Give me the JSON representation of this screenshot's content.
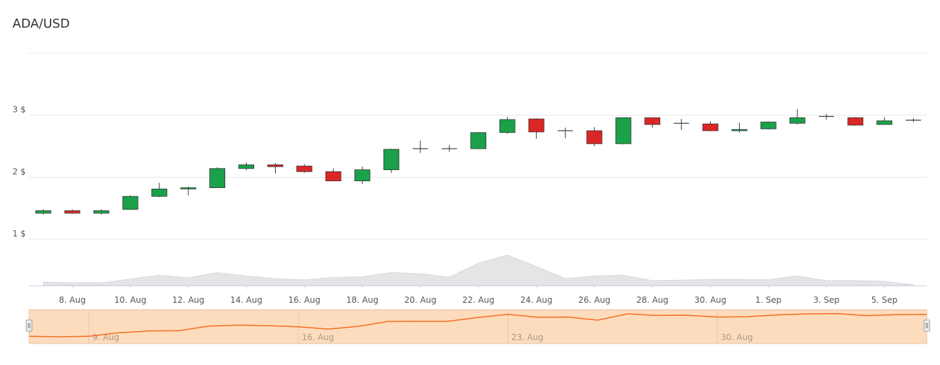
{
  "chart_data": {
    "type": "candlestick",
    "title": "ADA/USD",
    "y_ticks": [
      "1 $",
      "2 $",
      "3 $"
    ],
    "y_tick_values": [
      1,
      2,
      3
    ],
    "ylim": [
      1,
      4
    ],
    "x_tick_labels": [
      "8. Aug",
      "10. Aug",
      "12. Aug",
      "14. Aug",
      "16. Aug",
      "18. Aug",
      "20. Aug",
      "22. Aug",
      "24. Aug",
      "26. Aug",
      "28. Aug",
      "30. Aug",
      "1. Sep",
      "3. Sep",
      "5. Sep"
    ],
    "x_tick_dates": [
      "2021-08-08",
      "2021-08-10",
      "2021-08-12",
      "2021-08-14",
      "2021-08-16",
      "2021-08-18",
      "2021-08-20",
      "2021-08-22",
      "2021-08-24",
      "2021-08-26",
      "2021-08-28",
      "2021-08-30",
      "2021-09-01",
      "2021-09-03",
      "2021-09-05"
    ],
    "candles": [
      {
        "date": "2021-08-07",
        "open": 1.42,
        "high": 1.48,
        "low": 1.4,
        "close": 1.46
      },
      {
        "date": "2021-08-08",
        "open": 1.46,
        "high": 1.48,
        "low": 1.41,
        "close": 1.42
      },
      {
        "date": "2021-08-09",
        "open": 1.42,
        "high": 1.48,
        "low": 1.4,
        "close": 1.46
      },
      {
        "date": "2021-08-10",
        "open": 1.48,
        "high": 1.71,
        "low": 1.47,
        "close": 1.69
      },
      {
        "date": "2021-08-11",
        "open": 1.69,
        "high": 1.91,
        "low": 1.68,
        "close": 1.81
      },
      {
        "date": "2021-08-12",
        "open": 1.81,
        "high": 1.85,
        "low": 1.71,
        "close": 1.83
      },
      {
        "date": "2021-08-13",
        "open": 1.83,
        "high": 2.16,
        "low": 1.83,
        "close": 2.14
      },
      {
        "date": "2021-08-14",
        "open": 2.14,
        "high": 2.24,
        "low": 2.11,
        "close": 2.2
      },
      {
        "date": "2021-08-15",
        "open": 2.2,
        "high": 2.23,
        "low": 2.06,
        "close": 2.17
      },
      {
        "date": "2021-08-16",
        "open": 2.18,
        "high": 2.21,
        "low": 2.07,
        "close": 2.09
      },
      {
        "date": "2021-08-17",
        "open": 2.09,
        "high": 2.14,
        "low": 1.93,
        "close": 1.94
      },
      {
        "date": "2021-08-18",
        "open": 1.94,
        "high": 2.17,
        "low": 1.89,
        "close": 2.12
      },
      {
        "date": "2021-08-19",
        "open": 2.12,
        "high": 2.46,
        "low": 2.07,
        "close": 2.45
      },
      {
        "date": "2021-08-20",
        "open": 2.45,
        "high": 2.59,
        "low": 2.39,
        "close": 2.46
      },
      {
        "date": "2021-08-21",
        "open": 2.45,
        "high": 2.52,
        "low": 2.41,
        "close": 2.46
      },
      {
        "date": "2021-08-22",
        "open": 2.46,
        "high": 2.73,
        "low": 2.45,
        "close": 2.72
      },
      {
        "date": "2021-08-23",
        "open": 2.72,
        "high": 2.97,
        "low": 2.7,
        "close": 2.93
      },
      {
        "date": "2021-08-24",
        "open": 2.94,
        "high": 2.95,
        "low": 2.62,
        "close": 2.73
      },
      {
        "date": "2021-08-25",
        "open": 2.74,
        "high": 2.8,
        "low": 2.63,
        "close": 2.75
      },
      {
        "date": "2021-08-26",
        "open": 2.75,
        "high": 2.81,
        "low": 2.5,
        "close": 2.54
      },
      {
        "date": "2021-08-27",
        "open": 2.54,
        "high": 2.96,
        "low": 2.53,
        "close": 2.96
      },
      {
        "date": "2021-08-28",
        "open": 2.96,
        "high": 2.96,
        "low": 2.8,
        "close": 2.85
      },
      {
        "date": "2021-08-29",
        "open": 2.86,
        "high": 2.94,
        "low": 2.76,
        "close": 2.87
      },
      {
        "date": "2021-08-30",
        "open": 2.86,
        "high": 2.9,
        "low": 2.74,
        "close": 2.75
      },
      {
        "date": "2021-08-31",
        "open": 2.75,
        "high": 2.88,
        "low": 2.72,
        "close": 2.77
      },
      {
        "date": "2021-09-01",
        "open": 2.78,
        "high": 2.9,
        "low": 2.77,
        "close": 2.89
      },
      {
        "date": "2021-09-02",
        "open": 2.87,
        "high": 3.1,
        "low": 2.85,
        "close": 2.96
      },
      {
        "date": "2021-09-03",
        "open": 2.97,
        "high": 3.02,
        "low": 2.93,
        "close": 2.98
      },
      {
        "date": "2021-09-04",
        "open": 2.96,
        "high": 2.97,
        "low": 2.83,
        "close": 2.84
      },
      {
        "date": "2021-09-05",
        "open": 2.85,
        "high": 2.97,
        "low": 2.85,
        "close": 2.91
      },
      {
        "date": "2021-09-06",
        "open": 2.91,
        "high": 2.95,
        "low": 2.89,
        "close": 2.92
      }
    ],
    "volume_relative": [
      0.09,
      0.07,
      0.07,
      0.17,
      0.27,
      0.2,
      0.34,
      0.25,
      0.18,
      0.15,
      0.21,
      0.23,
      0.34,
      0.31,
      0.22,
      0.59,
      0.8,
      0.5,
      0.18,
      0.25,
      0.27,
      0.13,
      0.14,
      0.16,
      0.16,
      0.15,
      0.25,
      0.13,
      0.13,
      0.11,
      0.02
    ],
    "navigator": {
      "labels": [
        "9. Aug",
        "16. Aug",
        "23. Aug",
        "30. Aug"
      ],
      "label_dates": [
        "2021-08-09",
        "2021-08-16",
        "2021-08-23",
        "2021-08-30"
      ]
    },
    "colors": {
      "up": "#1aa14a",
      "down": "#db2626",
      "wick": "#333333",
      "grid": "#e6e6e6",
      "volume": "#e5e5e8",
      "navigator_bg": "#fcdcbc",
      "navigator_line": "#f26b21"
    },
    "grid": true,
    "legend": "none"
  }
}
